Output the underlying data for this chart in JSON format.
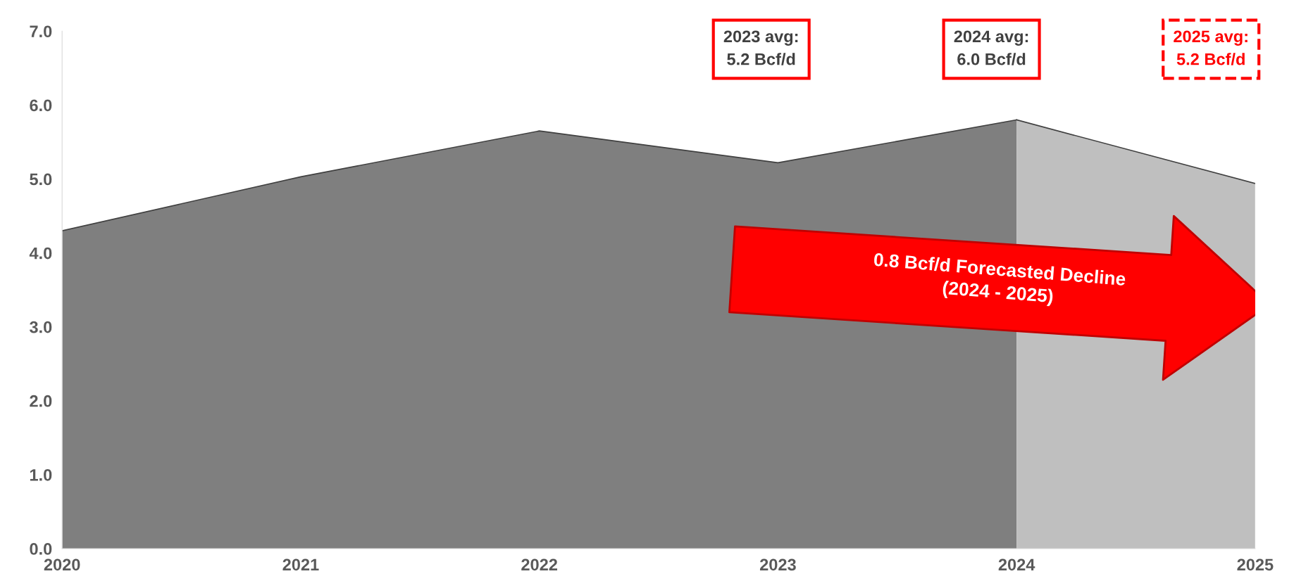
{
  "chart_data": {
    "type": "area",
    "series": [
      {
        "x": [
          2020,
          2021,
          2022,
          2023,
          2024
        ],
        "values": [
          4.3,
          5.03,
          5.65,
          5.22,
          5.8
        ],
        "color": "#7f7f7f"
      },
      {
        "x": [
          2024,
          2025
        ],
        "values": [
          5.8,
          4.94
        ],
        "color": "#bfbfbf"
      }
    ],
    "xlim": [
      2020,
      2025
    ],
    "xticks": [
      2020,
      2021,
      2022,
      2023,
      2024,
      2025
    ],
    "ylim": [
      0,
      7
    ],
    "yticks": [
      {
        "value": 0,
        "label": "0.0"
      },
      {
        "value": 1,
        "label": "1.0"
      },
      {
        "value": 2,
        "label": "2.0"
      },
      {
        "value": 3,
        "label": "3.0"
      },
      {
        "value": 4,
        "label": "4.0"
      },
      {
        "value": 5,
        "label": "5.0"
      },
      {
        "value": 6,
        "label": "6.0"
      },
      {
        "value": 7,
        "label": "7.0"
      }
    ],
    "grid": false,
    "legend": false,
    "annotations": [
      "2023 avg:\n5.2 Bcf/d",
      "2024 avg:\n6.0 Bcf/d",
      "2025 avg:\n5.2 Bcf/d",
      "0.8 Bcf/d Forecasted Decline\n(2024 - 2025)"
    ]
  }
}
